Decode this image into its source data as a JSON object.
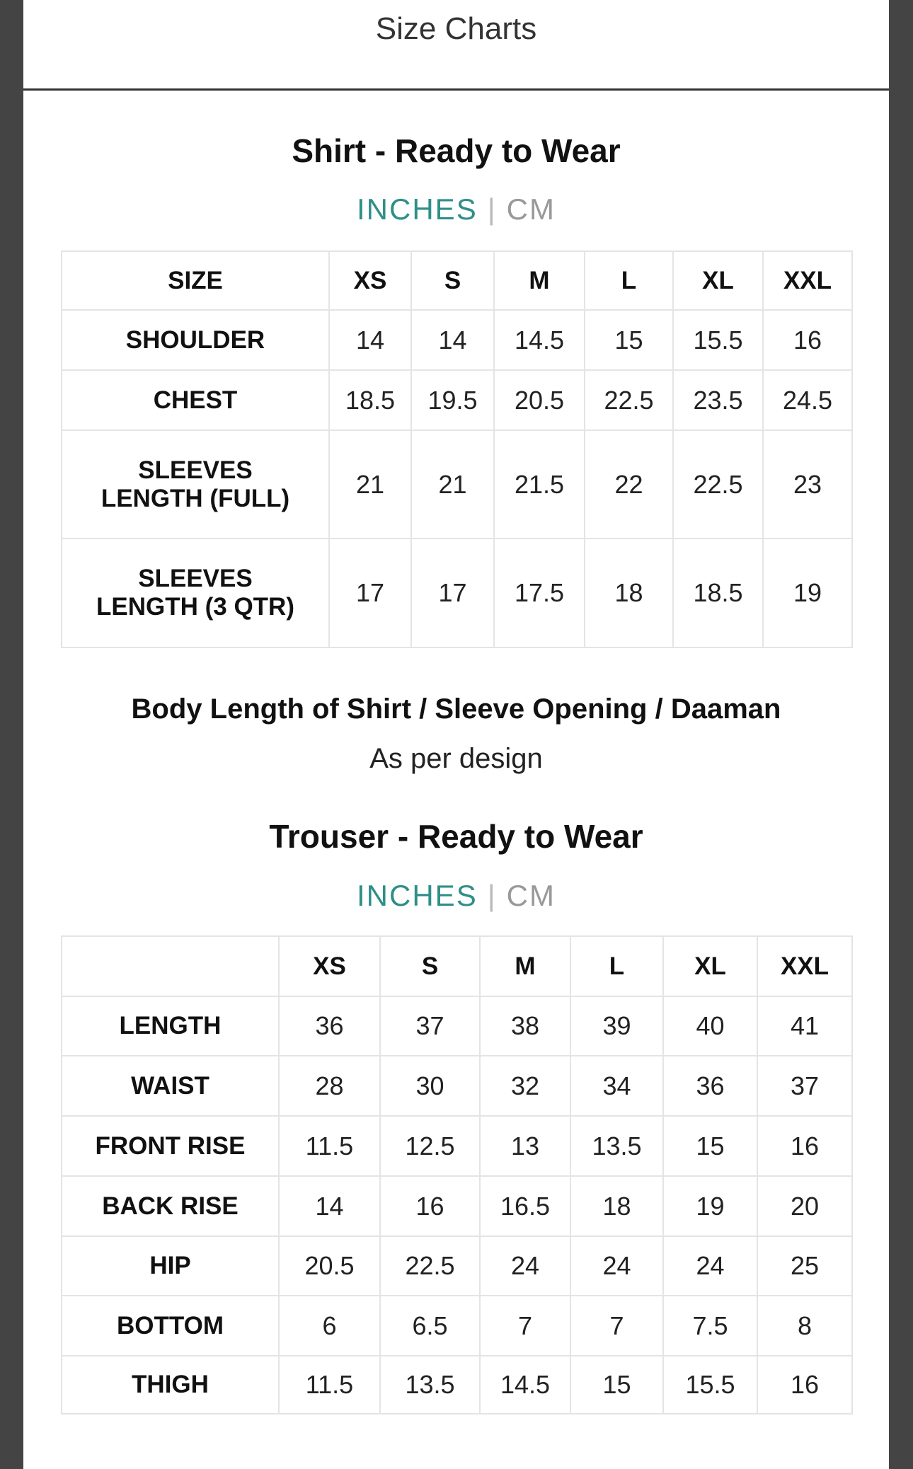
{
  "modal": {
    "title": "Size Charts"
  },
  "shirt": {
    "title": "Shirt - Ready to Wear",
    "units": {
      "inches": "INCHES",
      "separator": "|",
      "cm": "CM",
      "active": "INCHES"
    },
    "columns": [
      "SIZE",
      "XS",
      "S",
      "M",
      "L",
      "XL",
      "XXL"
    ],
    "rows": [
      {
        "label": "SHOULDER",
        "values": [
          "14",
          "14",
          "14.5",
          "15",
          "15.5",
          "16"
        ]
      },
      {
        "label": "CHEST",
        "values": [
          "18.5",
          "19.5",
          "20.5",
          "22.5",
          "23.5",
          "24.5"
        ]
      },
      {
        "label": "SLEEVES LENGTH (FULL)",
        "values": [
          "21",
          "21",
          "21.5",
          "22",
          "22.5",
          "23"
        ]
      },
      {
        "label": "SLEEVES LENGTH (3 QTR)",
        "values": [
          "17",
          "17",
          "17.5",
          "18",
          "18.5",
          "19"
        ]
      }
    ]
  },
  "note": {
    "title": "Body Length of Shirt / Sleeve Opening / Daaman",
    "text": "As per design"
  },
  "trouser": {
    "title": "Trouser - Ready to Wear",
    "units": {
      "inches": "INCHES",
      "separator": "|",
      "cm": "CM",
      "active": "INCHES"
    },
    "columns": [
      "",
      "XS",
      "S",
      "M",
      "L",
      "XL",
      "XXL"
    ],
    "rows": [
      {
        "label": "LENGTH",
        "values": [
          "36",
          "37",
          "38",
          "39",
          "40",
          "41"
        ]
      },
      {
        "label": "WAIST",
        "values": [
          "28",
          "30",
          "32",
          "34",
          "36",
          "37"
        ]
      },
      {
        "label": "FRONT RISE",
        "values": [
          "11.5",
          "12.5",
          "13",
          "13.5",
          "15",
          "16"
        ]
      },
      {
        "label": "BACK RISE",
        "values": [
          "14",
          "16",
          "16.5",
          "18",
          "19",
          "20"
        ]
      },
      {
        "label": "HIP",
        "values": [
          "20.5",
          "22.5",
          "24",
          "24",
          "24",
          "25"
        ]
      },
      {
        "label": "BOTTOM",
        "values": [
          "6",
          "6.5",
          "7",
          "7",
          "7.5",
          "8"
        ]
      },
      {
        "label": "THIGH",
        "values": [
          "11.5",
          "13.5",
          "14.5",
          "15",
          "15.5",
          "16"
        ]
      }
    ]
  },
  "colors": {
    "active_unit": "#2f8f87",
    "inactive_unit": "#999999",
    "frame": "#444444"
  }
}
